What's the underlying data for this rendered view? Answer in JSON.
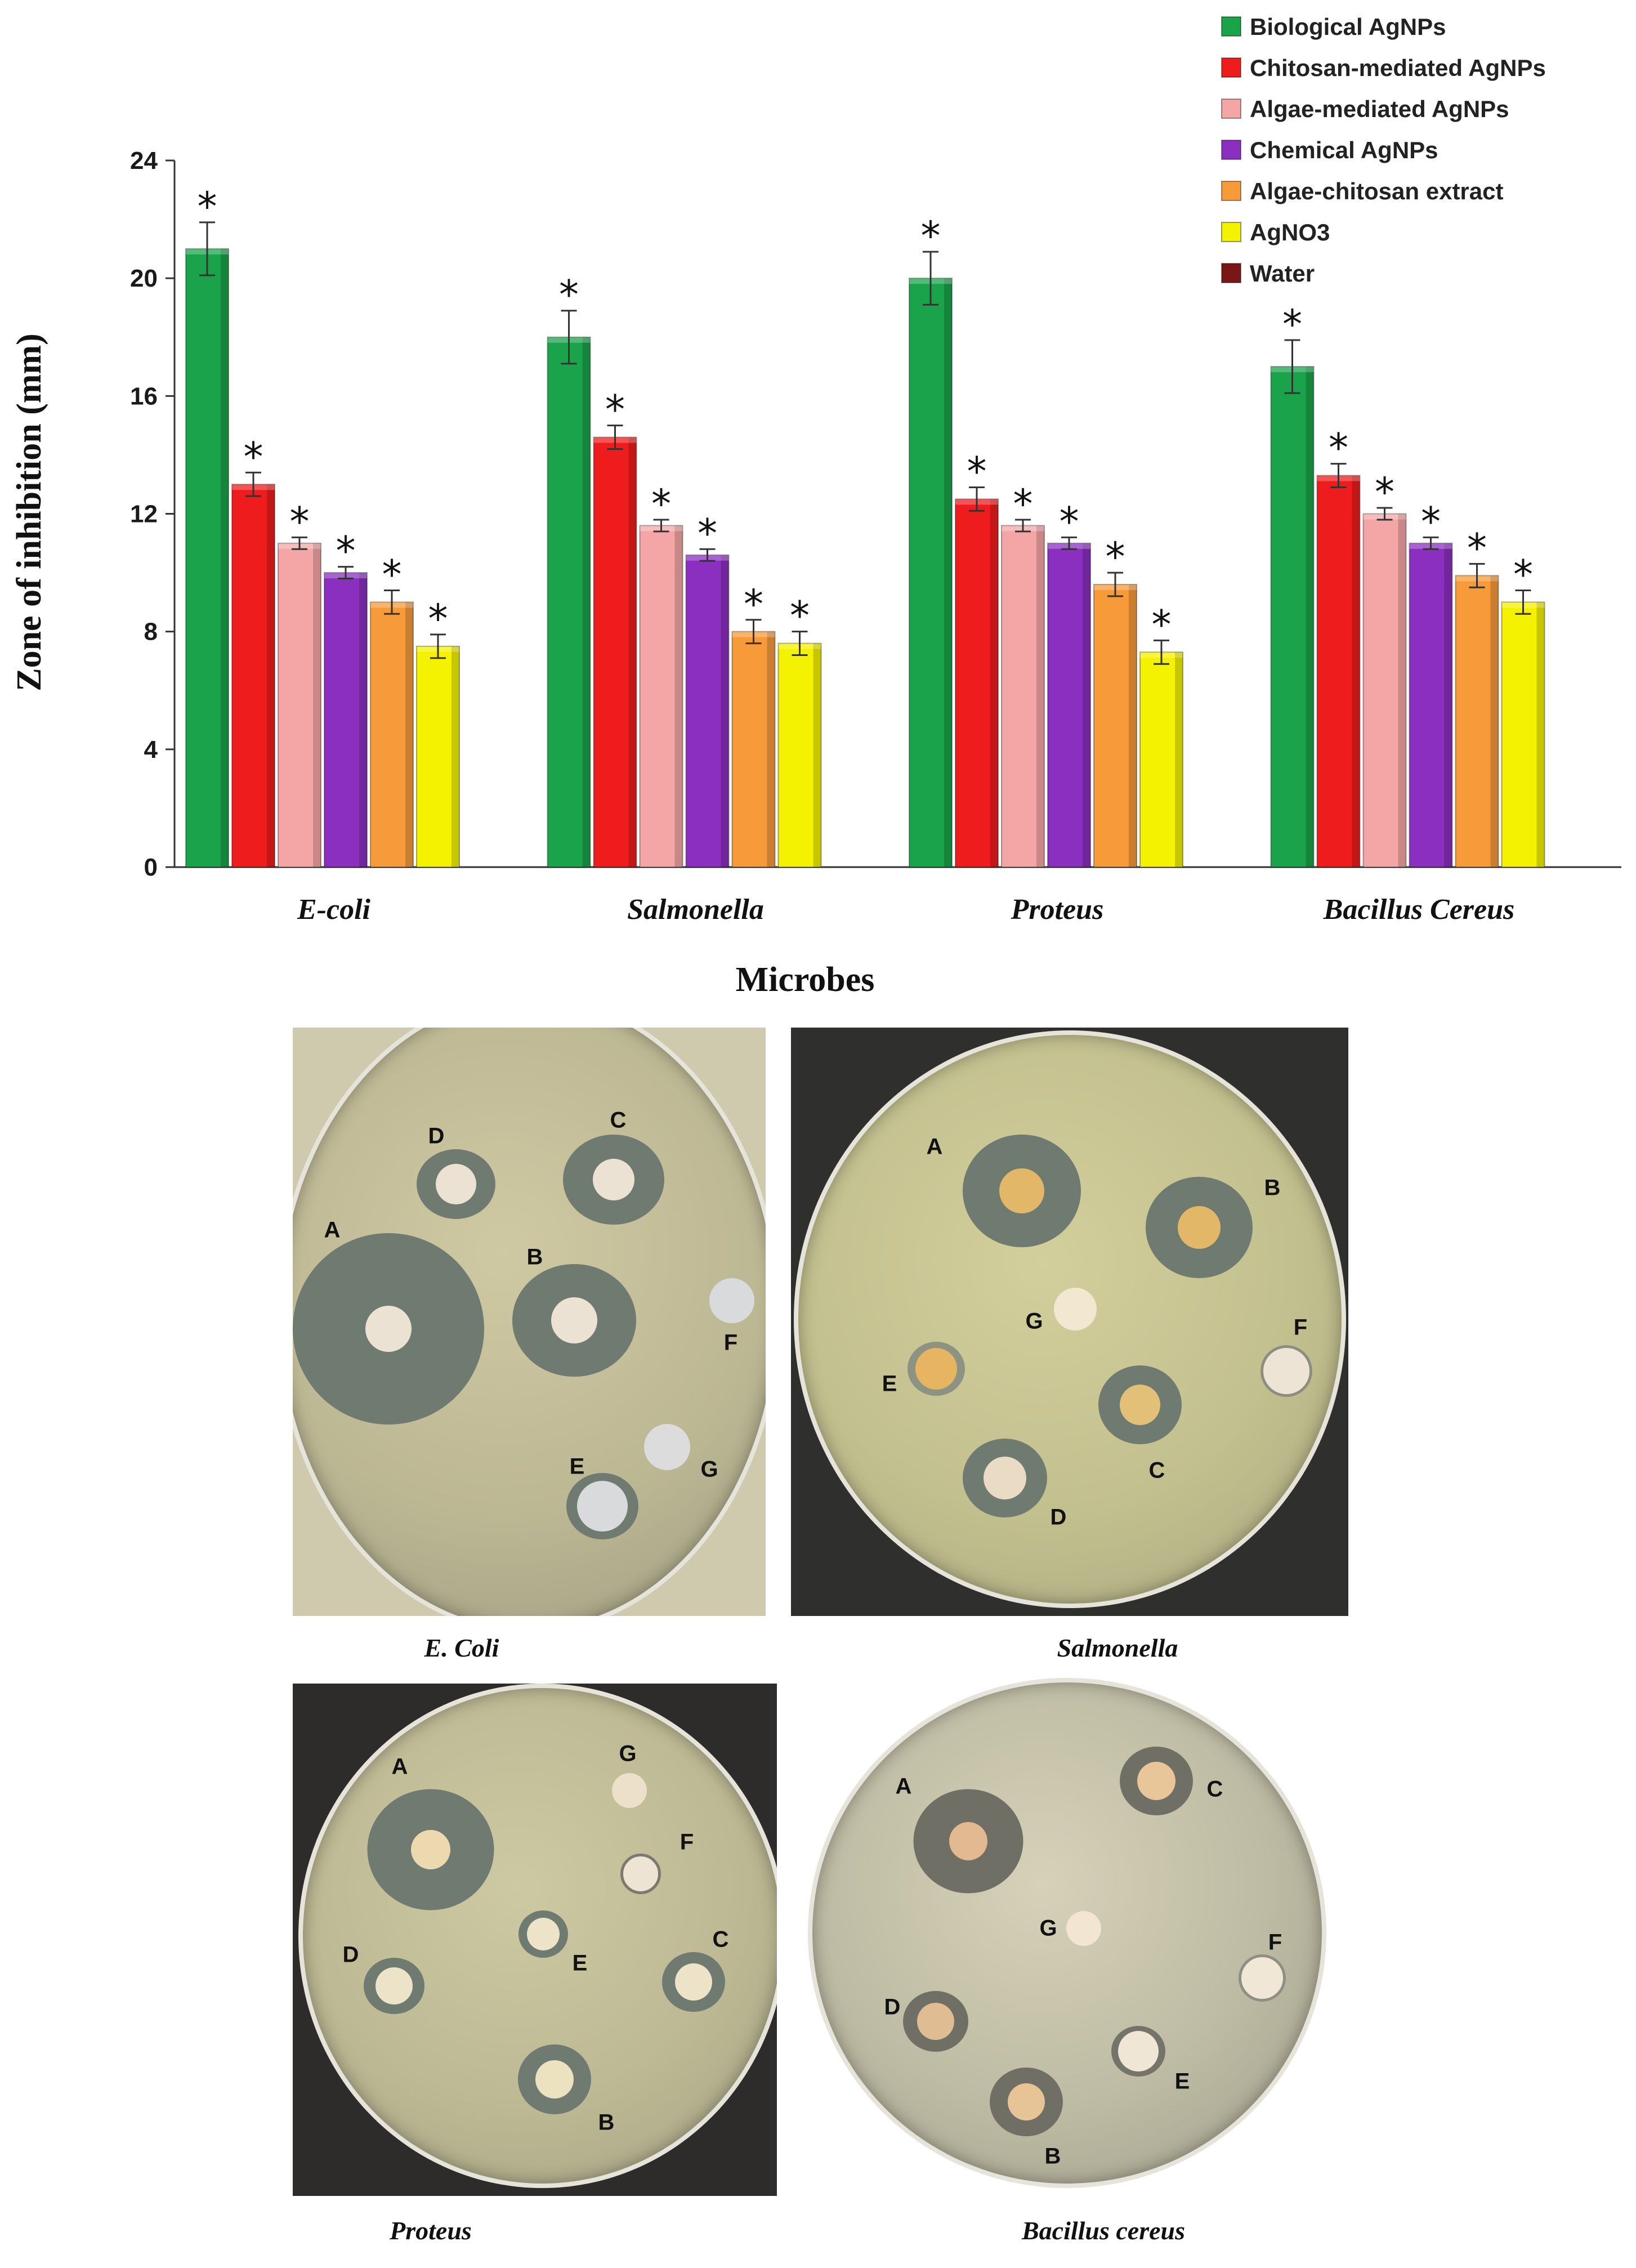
{
  "chart_data": {
    "type": "bar",
    "ylabel": "Zone of inhibition (mm)",
    "xlabel": "Microbes",
    "ylim": [
      0,
      24
    ],
    "yticks": [
      "0",
      "4",
      "8",
      "12",
      "16",
      "20",
      "24"
    ],
    "categories": [
      "E-coli",
      "Salmonella",
      "Proteus",
      "Bacillus Cereus"
    ],
    "significance_marker": "*",
    "legend_position": "top-right",
    "series": [
      {
        "name": "Biological AgNPs",
        "color": "#1aa34a",
        "values": [
          21,
          18,
          20,
          17
        ],
        "errors": [
          0.9,
          0.9,
          0.9,
          0.9
        ]
      },
      {
        "name": "Chitosan-mediated AgNPs",
        "color": "#ee1c1c",
        "values": [
          13,
          14.6,
          12.5,
          13.3
        ],
        "errors": [
          0.4,
          0.4,
          0.4,
          0.4
        ]
      },
      {
        "name": "Algae-mediated AgNPs",
        "color": "#f4a6a6",
        "values": [
          11,
          11.6,
          11.6,
          12
        ],
        "errors": [
          0.2,
          0.2,
          0.2,
          0.2
        ]
      },
      {
        "name": "Chemical AgNPs",
        "color": "#8a2fbf",
        "values": [
          10,
          10.6,
          11,
          11
        ],
        "errors": [
          0.2,
          0.2,
          0.2,
          0.2
        ]
      },
      {
        "name": "Algae-chitosan extract",
        "color": "#f79a3a",
        "values": [
          9,
          8,
          9.6,
          9.9
        ],
        "errors": [
          0.4,
          0.4,
          0.4,
          0.4
        ]
      },
      {
        "name": "AgNO3",
        "color": "#f5f200",
        "values": [
          7.5,
          7.6,
          7.3,
          9
        ],
        "errors": [
          0.4,
          0.4,
          0.4,
          0.4
        ]
      },
      {
        "name": "Water",
        "color": "#7a1616",
        "values": [
          0,
          0,
          0,
          0
        ],
        "errors": [
          0,
          0,
          0,
          0
        ]
      }
    ]
  },
  "plates": [
    {
      "caption": "E. Coli",
      "labels": {
        "A": "A",
        "B": "B",
        "C": "C",
        "D": "D",
        "E": "E",
        "F": "F",
        "G": "G"
      }
    },
    {
      "caption": "Salmonella",
      "labels": {
        "A": "A",
        "B": "B",
        "C": "C",
        "D": "D",
        "E": "E",
        "F": "F",
        "G": "G"
      }
    },
    {
      "caption": "Proteus",
      "labels": {
        "A": "A",
        "B": "B",
        "C": "C",
        "D": "D",
        "E": "E",
        "F": "F",
        "G": "G"
      }
    },
    {
      "caption": "Bacillus cereus",
      "labels": {
        "A": "A",
        "B": "B",
        "C": "C",
        "D": "D",
        "E": "E",
        "F": "F",
        "G": "G"
      }
    }
  ]
}
